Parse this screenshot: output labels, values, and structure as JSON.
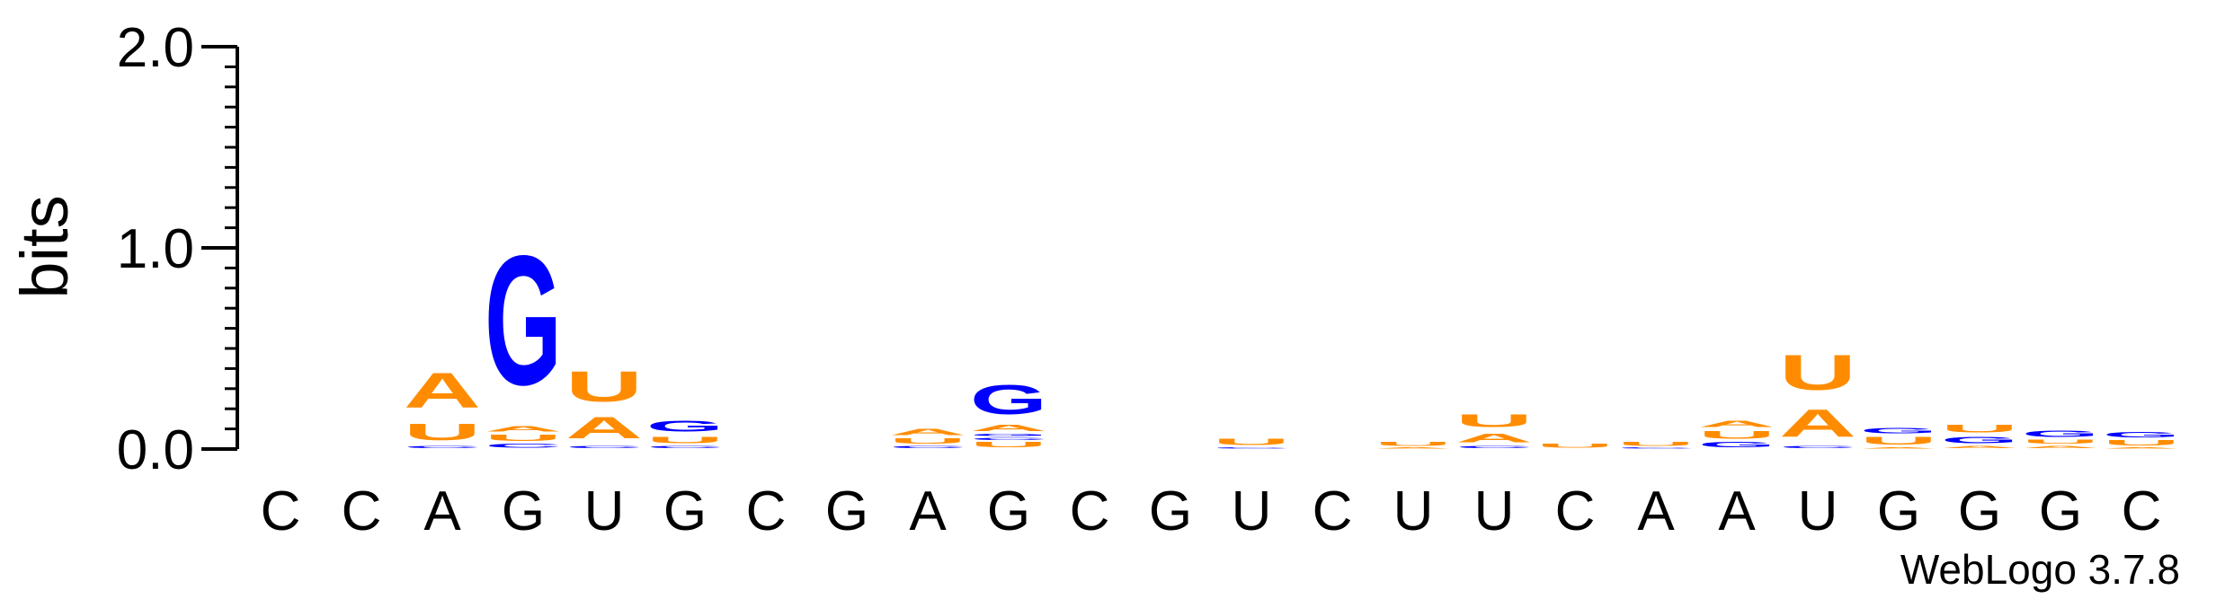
{
  "chart_data": {
    "type": "sequence-logo",
    "ylabel": "bits",
    "ylim": [
      0,
      2.0
    ],
    "yticks": [
      {
        "value": 0,
        "label": "0.0"
      },
      {
        "value": 1,
        "label": "1.0"
      },
      {
        "value": 2,
        "label": "2.0"
      }
    ],
    "y_minor_tick_step": 0.1,
    "colors": {
      "A": "#ff8c00",
      "U": "#ff8c00",
      "G": "#0000ff",
      "C": "#0000ff"
    },
    "axis_color": "#000000",
    "credit": "WebLogo 3.7.8",
    "positions": [
      {
        "label": "C",
        "letters": []
      },
      {
        "label": "C",
        "letters": []
      },
      {
        "label": "A",
        "letters": [
          {
            "l": "C",
            "h": 0.02
          },
          {
            "l": "U",
            "h": 0.13
          },
          {
            "l": "A",
            "h": 0.28
          }
        ]
      },
      {
        "label": "G",
        "letters": [
          {
            "l": "C",
            "h": 0.03
          },
          {
            "l": "U",
            "h": 0.05
          },
          {
            "l": "A",
            "h": 0.04
          },
          {
            "l": "G",
            "h": 1.03
          }
        ]
      },
      {
        "label": "U",
        "letters": [
          {
            "l": "C",
            "h": 0.02
          },
          {
            "l": "A",
            "h": 0.17
          },
          {
            "l": "U",
            "h": 0.24
          }
        ]
      },
      {
        "label": "G",
        "letters": [
          {
            "l": "C",
            "h": 0.02
          },
          {
            "l": "U",
            "h": 0.05
          },
          {
            "l": "G",
            "h": 0.09
          }
        ]
      },
      {
        "label": "C",
        "letters": []
      },
      {
        "label": "G",
        "letters": []
      },
      {
        "label": "A",
        "letters": [
          {
            "l": "C",
            "h": 0.02
          },
          {
            "l": "U",
            "h": 0.04
          },
          {
            "l": "A",
            "h": 0.05
          }
        ]
      },
      {
        "label": "G",
        "letters": [
          {
            "l": "U",
            "h": 0.04
          },
          {
            "l": "C",
            "h": 0.02
          },
          {
            "l": "G",
            "h": 0.02
          },
          {
            "l": "A",
            "h": 0.05
          },
          {
            "l": "G",
            "h": 0.23
          }
        ]
      },
      {
        "label": "C",
        "letters": []
      },
      {
        "label": "G",
        "letters": []
      },
      {
        "label": "U",
        "letters": [
          {
            "l": "C",
            "h": 0.01
          },
          {
            "l": "U",
            "h": 0.05
          }
        ]
      },
      {
        "label": "C",
        "letters": []
      },
      {
        "label": "U",
        "letters": [
          {
            "l": "A",
            "h": 0.01
          },
          {
            "l": "U",
            "h": 0.03
          }
        ]
      },
      {
        "label": "U",
        "letters": [
          {
            "l": "C",
            "h": 0.02
          },
          {
            "l": "A",
            "h": 0.07
          },
          {
            "l": "U",
            "h": 0.1
          }
        ]
      },
      {
        "label": "C",
        "letters": [
          {
            "l": "U",
            "h": 0.03
          }
        ]
      },
      {
        "label": "A",
        "letters": [
          {
            "l": "C",
            "h": 0.01
          },
          {
            "l": "U",
            "h": 0.03
          }
        ]
      },
      {
        "label": "A",
        "letters": [
          {
            "l": "G",
            "h": 0.04
          },
          {
            "l": "U",
            "h": 0.06
          },
          {
            "l": "A",
            "h": 0.05
          }
        ]
      },
      {
        "label": "U",
        "letters": [
          {
            "l": "C",
            "h": 0.02
          },
          {
            "l": "A",
            "h": 0.22
          },
          {
            "l": "U",
            "h": 0.28
          }
        ]
      },
      {
        "label": "G",
        "letters": [
          {
            "l": "A",
            "h": 0.01
          },
          {
            "l": "U",
            "h": 0.06
          },
          {
            "l": "G",
            "h": 0.04
          }
        ]
      },
      {
        "label": "G",
        "letters": [
          {
            "l": "A",
            "h": 0.02
          },
          {
            "l": "G",
            "h": 0.05
          },
          {
            "l": "U",
            "h": 0.06
          }
        ]
      },
      {
        "label": "G",
        "letters": [
          {
            "l": "A",
            "h": 0.02
          },
          {
            "l": "U",
            "h": 0.03
          },
          {
            "l": "G",
            "h": 0.05
          }
        ]
      },
      {
        "label": "C",
        "letters": [
          {
            "l": "A",
            "h": 0.01
          },
          {
            "l": "U",
            "h": 0.04
          },
          {
            "l": "G",
            "h": 0.04
          }
        ]
      }
    ]
  }
}
